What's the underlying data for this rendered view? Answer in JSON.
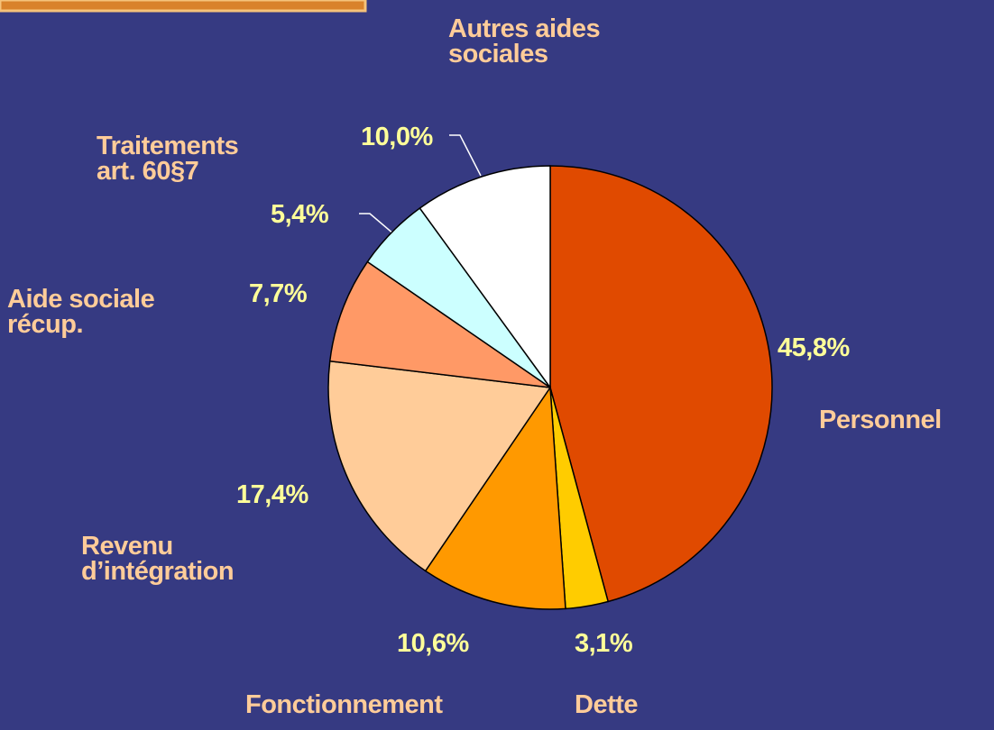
{
  "chart_data": {
    "type": "pie",
    "categories": [
      "Personnel",
      "Dette",
      "Fonctionnement",
      "Revenu\nd’intégration",
      "Aide sociale\n récup.",
      "Traitements\nart. 60§7",
      "Autres aides\nsociales"
    ],
    "values": [
      45.8,
      3.1,
      10.6,
      17.4,
      7.7,
      5.4,
      10.0
    ],
    "value_labels": [
      "45,8%",
      "3,1%",
      "10,6%",
      "17,4%",
      "7,7%",
      "5,4%",
      "10,0%"
    ],
    "colors": [
      "#e04a00",
      "#ffcc00",
      "#ff9900",
      "#ffcc99",
      "#ff9966",
      "#ccffff",
      "#ffffff"
    ]
  }
}
